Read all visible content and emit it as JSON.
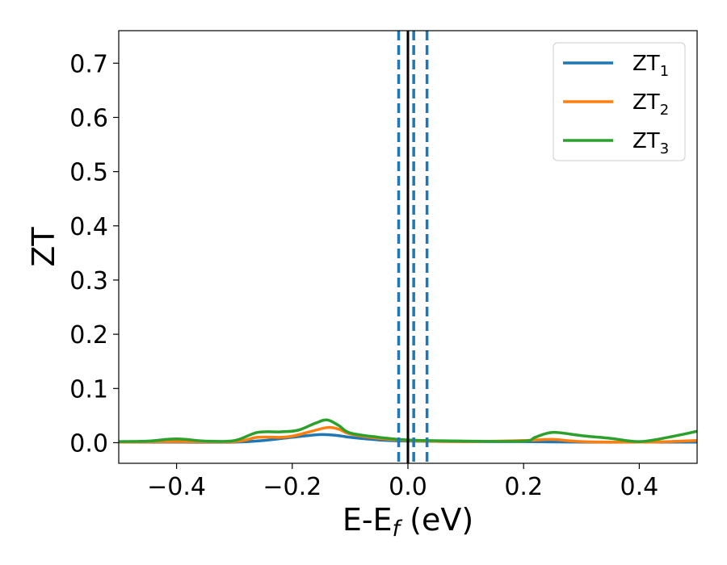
{
  "chart_data": {
    "type": "line",
    "xlabel": {
      "main": "E-E",
      "sub": "f",
      "unit": " (eV)"
    },
    "ylabel": "ZT",
    "xlim": [
      -0.5,
      0.5
    ],
    "ylim": [
      -0.038,
      0.76
    ],
    "x_ticks": [
      -0.4,
      -0.2,
      0.0,
      0.2,
      0.4
    ],
    "x_tick_labels": [
      "−0.4",
      "−0.2",
      "0.0",
      "0.2",
      "0.4"
    ],
    "y_ticks": [
      0.0,
      0.1,
      0.2,
      0.3,
      0.4,
      0.5,
      0.6,
      0.7
    ],
    "y_tick_labels": [
      "0.0",
      "0.1",
      "0.2",
      "0.3",
      "0.4",
      "0.5",
      "0.6",
      "0.7"
    ],
    "grid": false,
    "legend_position": "top-right",
    "series": [
      {
        "name": "ZT",
        "sub": "1",
        "color": "#1f77b4",
        "x": [
          -0.5,
          -0.4,
          -0.3,
          -0.25,
          -0.2,
          -0.15,
          -0.12,
          -0.1,
          -0.05,
          0.0,
          0.1,
          0.2,
          0.3,
          0.4,
          0.5
        ],
        "y": [
          0.001,
          0.001,
          0.001,
          0.004,
          0.01,
          0.015,
          0.013,
          0.01,
          0.005,
          0.003,
          0.002,
          0.002,
          0.001,
          0.001,
          0.001
        ]
      },
      {
        "name": "ZT",
        "sub": "2",
        "color": "#ff7f0e",
        "x": [
          -0.5,
          -0.4,
          -0.3,
          -0.26,
          -0.22,
          -0.2,
          -0.17,
          -0.14,
          -0.12,
          -0.1,
          -0.05,
          0.0,
          0.1,
          0.2,
          0.25,
          0.3,
          0.4,
          0.45,
          0.5
        ],
        "y": [
          0.001,
          0.002,
          0.002,
          0.01,
          0.01,
          0.012,
          0.02,
          0.028,
          0.025,
          0.016,
          0.008,
          0.004,
          0.002,
          0.004,
          0.006,
          0.002,
          0.001,
          0.002,
          0.004
        ]
      },
      {
        "name": "ZT",
        "sub": "3",
        "color": "#2ca02c",
        "x": [
          -0.5,
          -0.45,
          -0.4,
          -0.35,
          -0.3,
          -0.26,
          -0.22,
          -0.19,
          -0.16,
          -0.14,
          -0.12,
          -0.1,
          -0.05,
          0.0,
          0.1,
          0.2,
          0.22,
          0.25,
          0.3,
          0.35,
          0.4,
          0.45,
          0.5
        ],
        "y": [
          0.002,
          0.003,
          0.007,
          0.003,
          0.004,
          0.019,
          0.02,
          0.023,
          0.036,
          0.042,
          0.032,
          0.018,
          0.01,
          0.005,
          0.003,
          0.003,
          0.01,
          0.019,
          0.013,
          0.008,
          0.002,
          0.01,
          0.021
        ]
      }
    ],
    "vlines": [
      {
        "x": 0.0,
        "color": "#000000",
        "style": "solid"
      },
      {
        "x": -0.016,
        "color": "#1f77b4",
        "style": "dashed"
      },
      {
        "x": 0.01,
        "color": "#1f77b4",
        "style": "dashed"
      },
      {
        "x": 0.033,
        "color": "#1f77b4",
        "style": "dashed"
      }
    ]
  }
}
